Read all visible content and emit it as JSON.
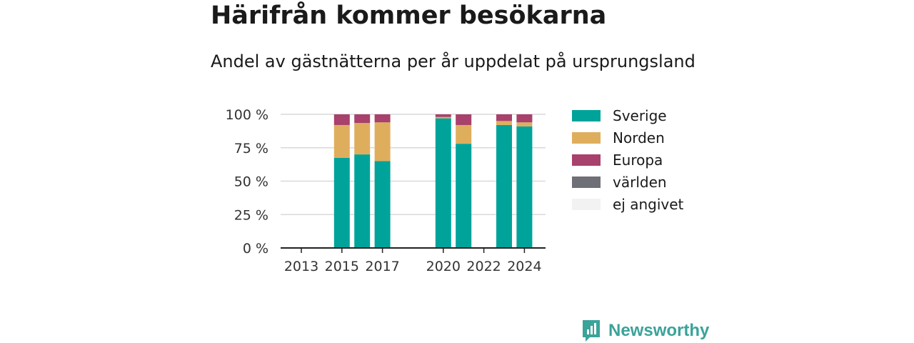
{
  "title": "Härifrån kommer besökarna",
  "subtitle": "Andel av gästnätterna per år uppdelat på ursprungsland",
  "brand": {
    "name": "Newsworthy"
  },
  "chart_data": {
    "type": "bar",
    "stacked": true,
    "title": "Härifrån kommer besökarna",
    "subtitle": "Andel av gästnätterna per år uppdelat på ursprungsland",
    "categories": [
      2013,
      2014,
      2015,
      2016,
      2017,
      2018,
      2019,
      2020,
      2021,
      2022,
      2023,
      2024
    ],
    "x_ticks": [
      2013,
      2015,
      2017,
      2020,
      2022,
      2024
    ],
    "y_ticks": [
      {
        "value": 0,
        "label": "0 %"
      },
      {
        "value": 25,
        "label": "25 %"
      },
      {
        "value": 50,
        "label": "50 %"
      },
      {
        "value": 75,
        "label": "75 %"
      },
      {
        "value": 100,
        "label": "100 %"
      }
    ],
    "ylim": [
      0,
      100
    ],
    "grid": true,
    "legend_position": "right",
    "series": [
      {
        "name": "Sverige",
        "color": "#00a39a",
        "values": [
          null,
          null,
          67.5,
          70,
          65,
          null,
          null,
          97,
          78,
          null,
          92,
          91
        ]
      },
      {
        "name": "Norden",
        "color": "#dfae5d",
        "values": [
          null,
          null,
          24.5,
          23.5,
          29,
          null,
          null,
          1,
          14,
          null,
          3,
          3
        ]
      },
      {
        "name": "Europa",
        "color": "#a8416c",
        "values": [
          null,
          null,
          8,
          6.5,
          6,
          null,
          null,
          2,
          8,
          null,
          5,
          6
        ]
      },
      {
        "name": "världen",
        "color": "#6f6f78",
        "values": [
          null,
          null,
          0,
          0,
          0,
          null,
          null,
          0,
          0,
          null,
          0,
          0
        ]
      },
      {
        "name": "ej angivet",
        "color": "#f2f2f2",
        "values": [
          null,
          null,
          0,
          0,
          0,
          null,
          null,
          0,
          0,
          null,
          0,
          0
        ]
      }
    ]
  }
}
